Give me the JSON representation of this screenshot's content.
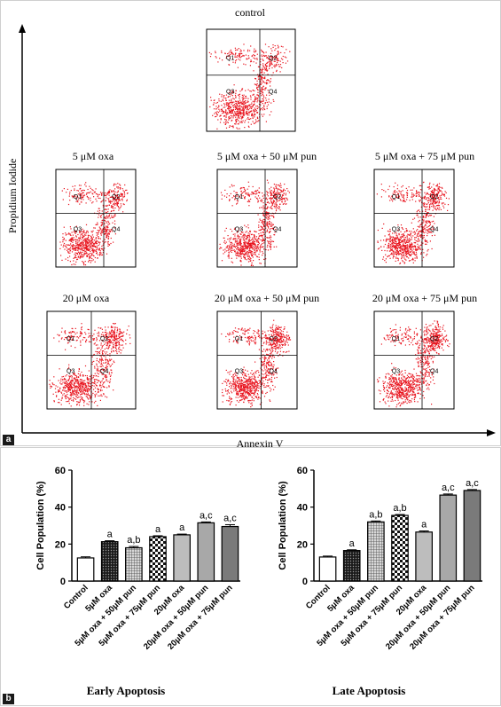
{
  "panel_a": {
    "tag": "a",
    "y_axis_label": "Propidium Iodide",
    "x_axis_label": "Annexin V",
    "plots": [
      {
        "title": "control",
        "quadrants": [
          "Q1",
          "Q2",
          "Q3",
          "Q4"
        ]
      },
      {
        "title": "5 μM oxa",
        "quadrants": [
          "Q1",
          "Q2",
          "Q3",
          "Q4"
        ]
      },
      {
        "title": "5 μM oxa + 50 μM pun",
        "quadrants": [
          "Q1",
          "Q2",
          "Q3",
          "Q4"
        ]
      },
      {
        "title": "5 μM oxa + 75 μM pun",
        "quadrants": [
          "Q1",
          "Q2",
          "Q3",
          "Q4"
        ]
      },
      {
        "title": "20 μM oxa",
        "quadrants": [
          "Q1",
          "Q2",
          "Q3",
          "Q4"
        ]
      },
      {
        "title": "20 μM oxa + 50 μM pun",
        "quadrants": [
          "Q1",
          "Q2",
          "Q3",
          "Q4"
        ]
      },
      {
        "title": "20 μM oxa + 75 μM pun",
        "quadrants": [
          "Q1",
          "Q2",
          "Q3",
          "Q4"
        ]
      }
    ],
    "dot_color": "#e8141e"
  },
  "panel_b": {
    "tag": "b"
  },
  "chart_data": [
    {
      "type": "bar",
      "title": "Early Apoptosis",
      "ylabel": "Cell Population (%)",
      "ylim": [
        0,
        60
      ],
      "yticks": [
        0,
        20,
        40,
        60
      ],
      "categories": [
        "Control",
        "5μM oxa",
        "5μM oxa + 50μM pun",
        "5μM oxa + 75μM pun",
        "20μM oxa",
        "20μM oxa + 50μM pun",
        "20μM oxa + 75μM pun"
      ],
      "values": [
        12.5,
        21.3,
        18.0,
        24.0,
        25.0,
        31.5,
        29.5
      ],
      "errors": [
        0.6,
        0.5,
        0.7,
        0.5,
        0.4,
        0.5,
        1.0
      ],
      "annotations": [
        "",
        "a",
        "a,b",
        "a",
        "a",
        "a,c",
        "a,c"
      ],
      "fills": [
        "white",
        "dots",
        "grid",
        "checker",
        "lightgray",
        "silver",
        "gray"
      ]
    },
    {
      "type": "bar",
      "title": "Late Apoptosis",
      "ylabel": "Cell Population (%)",
      "ylim": [
        0,
        60
      ],
      "yticks": [
        0,
        20,
        40,
        60
      ],
      "categories": [
        "Control",
        "5μM oxa",
        "5μM oxa + 50μM pun",
        "5μM oxa + 75μM pun",
        "20μM oxa",
        "20μM oxa + 50μM pun",
        "20μM oxa + 75μM pun"
      ],
      "values": [
        13.0,
        16.5,
        32.0,
        35.5,
        26.5,
        46.5,
        49.0
      ],
      "errors": [
        0.5,
        0.4,
        0.5,
        0.5,
        0.6,
        0.6,
        0.5
      ],
      "annotations": [
        "",
        "a",
        "a,b",
        "a,b",
        "a",
        "a,c",
        "a,c"
      ],
      "fills": [
        "white",
        "dots",
        "grid",
        "checker",
        "lightgray",
        "silver",
        "gray"
      ]
    }
  ]
}
